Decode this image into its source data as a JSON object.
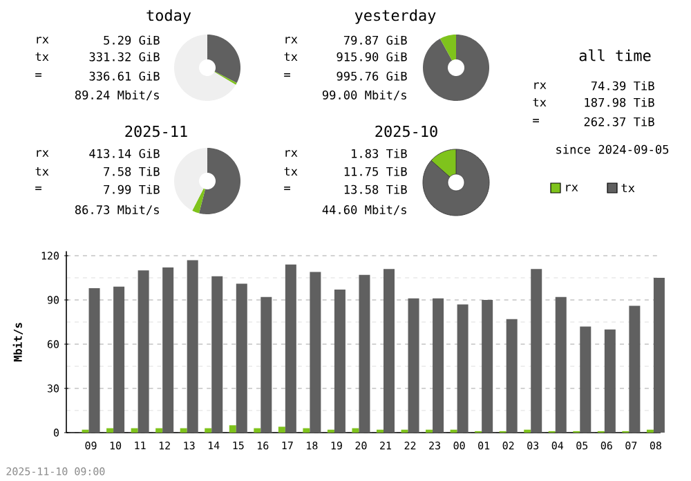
{
  "chart_data": [
    {
      "type": "donut",
      "title": "today",
      "categories": [
        null,
        null,
        null
      ],
      "values": [
        32.6,
        1.0,
        66.4
      ],
      "colors": [
        "#606060",
        "#7fc31c",
        "#efefef"
      ],
      "annotations": [
        "rx",
        "5.29 GiB",
        "tx",
        "331.32 GiB",
        "=",
        "336.61 GiB",
        "89.24 Mbit/s"
      ]
    },
    {
      "type": "donut",
      "title": "yesterday",
      "categories": [
        null,
        null
      ],
      "values": [
        92,
        8
      ],
      "colors": [
        "#606060",
        "#7fc31c"
      ],
      "annotations": [
        "rx",
        "79.87 GiB",
        "tx",
        "915.90 GiB",
        "=",
        "995.76 GiB",
        "99.00 Mbit/s"
      ]
    },
    {
      "type": "other",
      "title": "all time",
      "annotations": [
        "rx",
        "74.39 TiB",
        "tx",
        "187.98 TiB",
        "=",
        "262.37 TiB",
        "since 2024-09-05"
      ]
    },
    {
      "type": "donut",
      "title": "2025-11",
      "categories": [
        null,
        null,
        null
      ],
      "values": [
        54.0,
        3.5,
        42.5
      ],
      "colors": [
        "#606060",
        "#7fc31c",
        "#efefef"
      ],
      "annotations": [
        "rx",
        "413.14 GiB",
        "tx",
        "7.58 TiB",
        "=",
        "7.99 TiB",
        "86.73 Mbit/s"
      ]
    },
    {
      "type": "donut",
      "title": "2025-10",
      "categories": [
        "tx",
        "rx"
      ],
      "values": [
        86.5,
        13.5
      ],
      "colors": [
        "#606060",
        "#7fc31c"
      ],
      "legend": "right",
      "annotations": [
        "rx",
        "1.83 TiB",
        "tx",
        "11.75 TiB",
        "=",
        "13.58 TiB",
        "44.60 Mbit/s"
      ]
    },
    {
      "type": "bar",
      "ylabel": "Mbit/s",
      "grid": "y",
      "categories": [
        "09",
        "10",
        "11",
        "12",
        "13",
        "14",
        "15",
        "16",
        "17",
        "18",
        "19",
        "20",
        "21",
        "22",
        "23",
        "00",
        "01",
        "02",
        "03",
        "04",
        "05",
        "06",
        "07",
        "08"
      ],
      "series": [
        {
          "color": "#7fc31c",
          "values": [
            2,
            3,
            3,
            3,
            3,
            3,
            5,
            3,
            4,
            3,
            2,
            3,
            2,
            2,
            2,
            2,
            1,
            1,
            2,
            1,
            1,
            1,
            1,
            2
          ]
        },
        {
          "color": "#606060",
          "values": [
            98,
            99,
            110,
            112,
            117,
            106,
            101,
            92,
            114,
            109,
            97,
            107,
            111,
            91,
            91,
            87,
            90,
            77,
            111,
            92,
            72,
            70,
            86,
            105
          ]
        }
      ],
      "ylim": [
        0,
        123
      ],
      "yticks": [
        0,
        {
          "value": 15,
          "label": null
        },
        30,
        {
          "value": 45,
          "label": null
        },
        60,
        {
          "value": 75,
          "label": null
        },
        90,
        {
          "value": 105,
          "label": null
        },
        120
      ],
      "annotations": [
        "2025-11-10 09:00"
      ]
    }
  ]
}
